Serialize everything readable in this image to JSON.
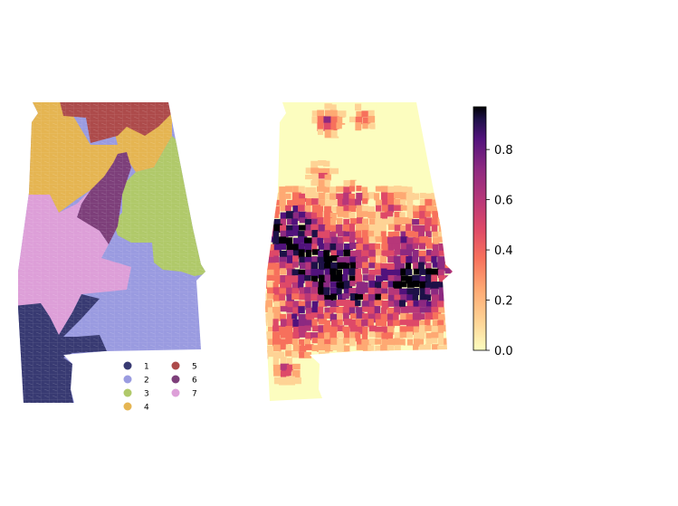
{
  "chart_data": [
    {
      "type": "choropleth",
      "title": "",
      "legend": {
        "placement": "bottom-right",
        "entries": [
          {
            "label": "1",
            "color": "#383a72"
          },
          {
            "label": "2",
            "color": "#9a9be0"
          },
          {
            "label": "3",
            "color": "#b0c96a"
          },
          {
            "label": "4",
            "color": "#e5b552"
          },
          {
            "label": "5",
            "color": "#ad4b4b"
          },
          {
            "label": "6",
            "color": "#7d3f7a"
          },
          {
            "label": "7",
            "color": "#dd9fd8"
          }
        ]
      },
      "districts": [
        {
          "label": "1",
          "color": "#383a72"
        },
        {
          "label": "2",
          "color": "#9a9be0"
        },
        {
          "label": "3",
          "color": "#b0c96a"
        },
        {
          "label": "4",
          "color": "#e5b552"
        },
        {
          "label": "5",
          "color": "#ad4b4b"
        },
        {
          "label": "6",
          "color": "#7d3f7a"
        },
        {
          "label": "7",
          "color": "#dd9fd8"
        }
      ]
    },
    {
      "type": "heatmap",
      "title": "",
      "colormap": "magma_r",
      "colorbar": {
        "min": 0.0,
        "max": 0.97,
        "ticks": [
          0.0,
          0.2,
          0.4,
          0.6,
          0.8
        ],
        "tick_labels": [
          "0.0",
          "0.2",
          "0.4",
          "0.6",
          "0.8"
        ],
        "placement": "right"
      }
    }
  ]
}
